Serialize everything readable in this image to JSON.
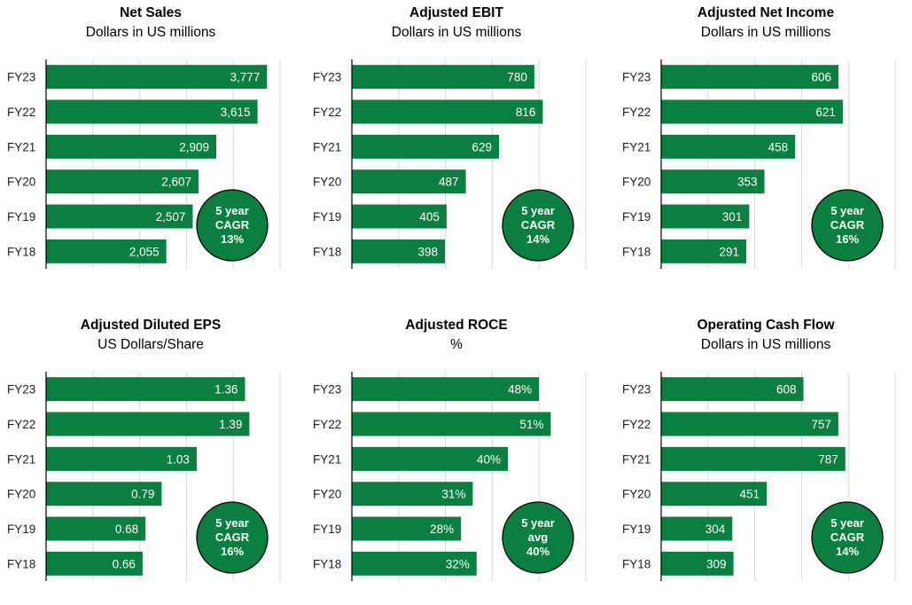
{
  "chart_data": [
    {
      "type": "bar",
      "orientation": "horizontal",
      "title": "Net Sales",
      "subtitle": "Dollars in US millions",
      "categories": [
        "FY23",
        "FY22",
        "FY21",
        "FY20",
        "FY19",
        "FY18"
      ],
      "values": [
        3777,
        3615,
        2909,
        2607,
        2507,
        2055
      ],
      "value_labels": [
        "3,777",
        "3,615",
        "2,909",
        "2,607",
        "2,507",
        "2,055"
      ],
      "xlim": [
        0,
        4000
      ],
      "grid": true,
      "badge": [
        "5 year",
        "CAGR",
        "13%"
      ]
    },
    {
      "type": "bar",
      "orientation": "horizontal",
      "title": "Adjusted EBIT",
      "subtitle": "Dollars in US millions",
      "categories": [
        "FY23",
        "FY22",
        "FY21",
        "FY20",
        "FY19",
        "FY18"
      ],
      "values": [
        780,
        816,
        629,
        487,
        405,
        398
      ],
      "value_labels": [
        "780",
        "816",
        "629",
        "487",
        "405",
        "398"
      ],
      "xlim": [
        0,
        1000
      ],
      "grid": true,
      "badge": [
        "5 year",
        "CAGR",
        "14%"
      ]
    },
    {
      "type": "bar",
      "orientation": "horizontal",
      "title": "Adjusted Net Income",
      "subtitle": "Dollars in US millions",
      "categories": [
        "FY23",
        "FY22",
        "FY21",
        "FY20",
        "FY19",
        "FY18"
      ],
      "values": [
        606,
        621,
        458,
        353,
        301,
        291
      ],
      "value_labels": [
        "606",
        "621",
        "458",
        "353",
        "301",
        "291"
      ],
      "xlim": [
        0,
        800
      ],
      "grid": true,
      "badge": [
        "5 year",
        "CAGR",
        "16%"
      ]
    },
    {
      "type": "bar",
      "orientation": "horizontal",
      "title": "Adjusted Diluted EPS",
      "subtitle": "US Dollars/Share",
      "categories": [
        "FY23",
        "FY22",
        "FY21",
        "FY20",
        "FY19",
        "FY18"
      ],
      "values": [
        1.36,
        1.39,
        1.03,
        0.79,
        0.68,
        0.66
      ],
      "value_labels": [
        "1.36",
        "1.39",
        "1.03",
        "0.79",
        "0.68",
        "0.66"
      ],
      "xlim": [
        0,
        1.6
      ],
      "grid": true,
      "badge": [
        "5 year",
        "CAGR",
        "16%"
      ]
    },
    {
      "type": "bar",
      "orientation": "horizontal",
      "title": "Adjusted ROCE",
      "subtitle": "%",
      "categories": [
        "FY23",
        "FY22",
        "FY21",
        "FY20",
        "FY19",
        "FY18"
      ],
      "values": [
        48,
        51,
        40,
        31,
        28,
        32
      ],
      "value_labels": [
        "48%",
        "51%",
        "40%",
        "31%",
        "28%",
        "32%"
      ],
      "xlim": [
        0,
        60
      ],
      "grid": true,
      "badge": [
        "5 year",
        "avg",
        "40%"
      ]
    },
    {
      "type": "bar",
      "orientation": "horizontal",
      "title": "Operating Cash Flow",
      "subtitle": "Dollars in US millions",
      "categories": [
        "FY23",
        "FY22",
        "FY21",
        "FY20",
        "FY19",
        "FY18"
      ],
      "values": [
        608,
        757,
        787,
        451,
        304,
        309
      ],
      "value_labels": [
        "608",
        "757",
        "787",
        "451",
        "304",
        "309"
      ],
      "xlim": [
        0,
        1000
      ],
      "grid": true,
      "badge": [
        "5 year",
        "CAGR",
        "14%"
      ]
    }
  ],
  "colors": {
    "bar": "#0a7f3f",
    "grid": "#d9d9d9",
    "text": "#222222"
  }
}
